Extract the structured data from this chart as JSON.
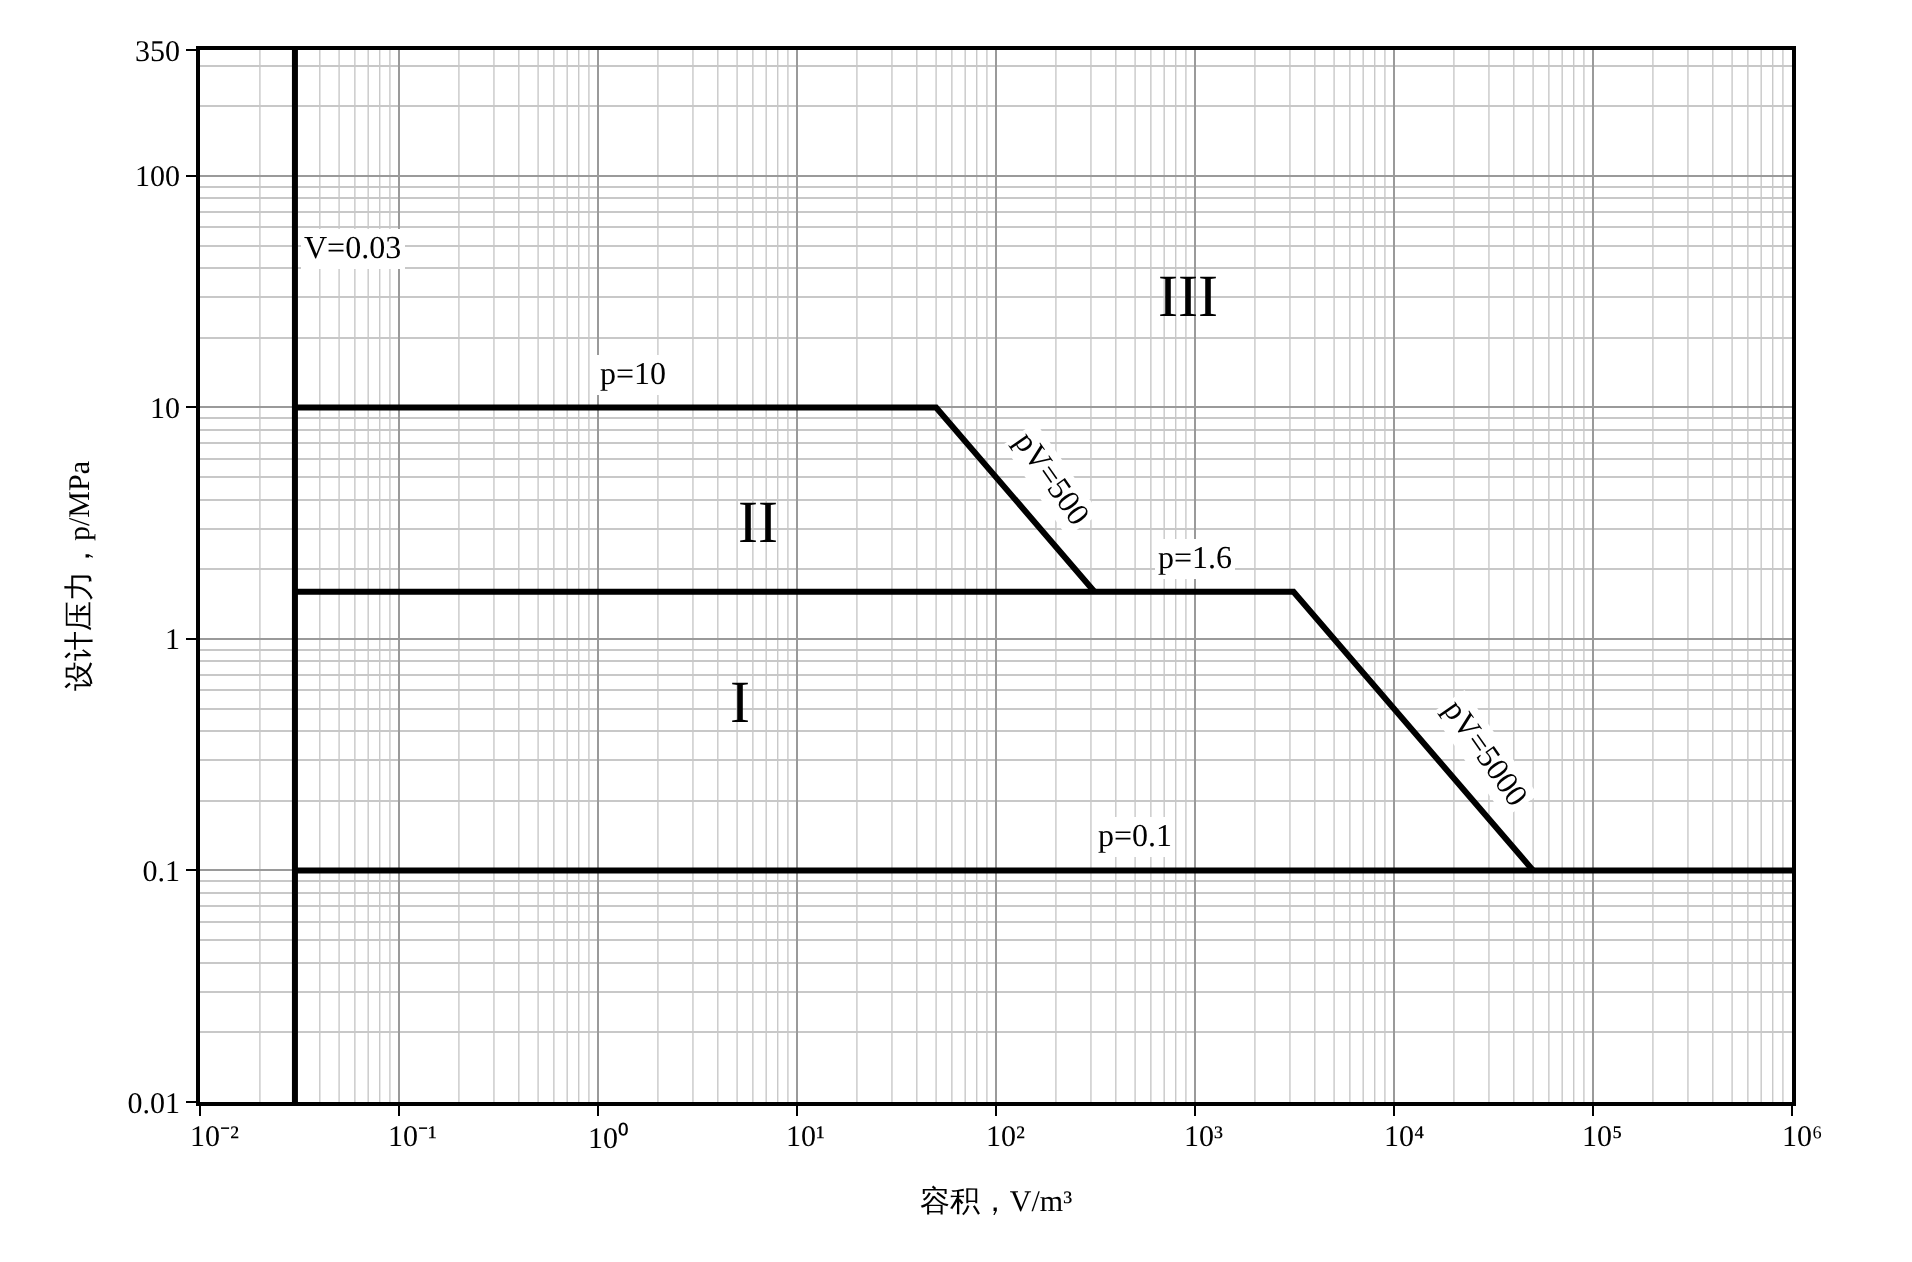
{
  "chart_data": {
    "type": "line",
    "xlabel": "容积，V/m³",
    "ylabel": "设计压力，p/MPa",
    "log": "xy",
    "grid": true,
    "marker": "none",
    "line_style": "solid",
    "xlim": [
      0.01,
      1000000
    ],
    "ylim": [
      0.01,
      350
    ],
    "xticks": [
      {
        "value": 0.01,
        "label": "10⁻²"
      },
      {
        "value": 0.1,
        "label": "10⁻¹"
      },
      {
        "value": 1,
        "label": "10⁰"
      },
      {
        "value": 10,
        "label": "10¹"
      },
      {
        "value": 100,
        "label": "10²"
      },
      {
        "value": 1000,
        "label": "10³"
      },
      {
        "value": 10000,
        "label": "10⁴"
      },
      {
        "value": 100000,
        "label": "10⁵"
      },
      {
        "value": 1000000,
        "label": "10⁶"
      }
    ],
    "yticks": [
      0.01,
      0.1,
      1,
      10,
      100,
      350
    ],
    "series": [
      {
        "color": "#000000",
        "x": [
          0.03,
          50,
          312.5
        ],
        "values": [
          10,
          10,
          1.6
        ]
      },
      {
        "color": "#000000",
        "x": [
          0.03,
          3125,
          50000
        ],
        "values": [
          1.6,
          1.6,
          0.1
        ]
      },
      {
        "color": "#000000",
        "x": [
          0.03,
          1000000
        ],
        "values": [
          0.1,
          0.1
        ]
      }
    ],
    "annotations": [
      {
        "text": "p=10",
        "x": 1.5,
        "y": 10
      },
      {
        "text": "pV=500",
        "x": 130,
        "y": 3.85
      },
      {
        "text": "p=1.6",
        "x": 1000,
        "y": 1.6
      },
      {
        "text": "pV=5000",
        "x": 20000,
        "y": 0.25
      },
      {
        "text": "p=0.1",
        "x": 500,
        "y": 0.1
      },
      "I",
      "II",
      "III"
    ],
    "ref_lines": [
      {
        "axis": "x",
        "value": 0.03,
        "label": "V=0.03",
        "color": "#000000"
      }
    ]
  }
}
